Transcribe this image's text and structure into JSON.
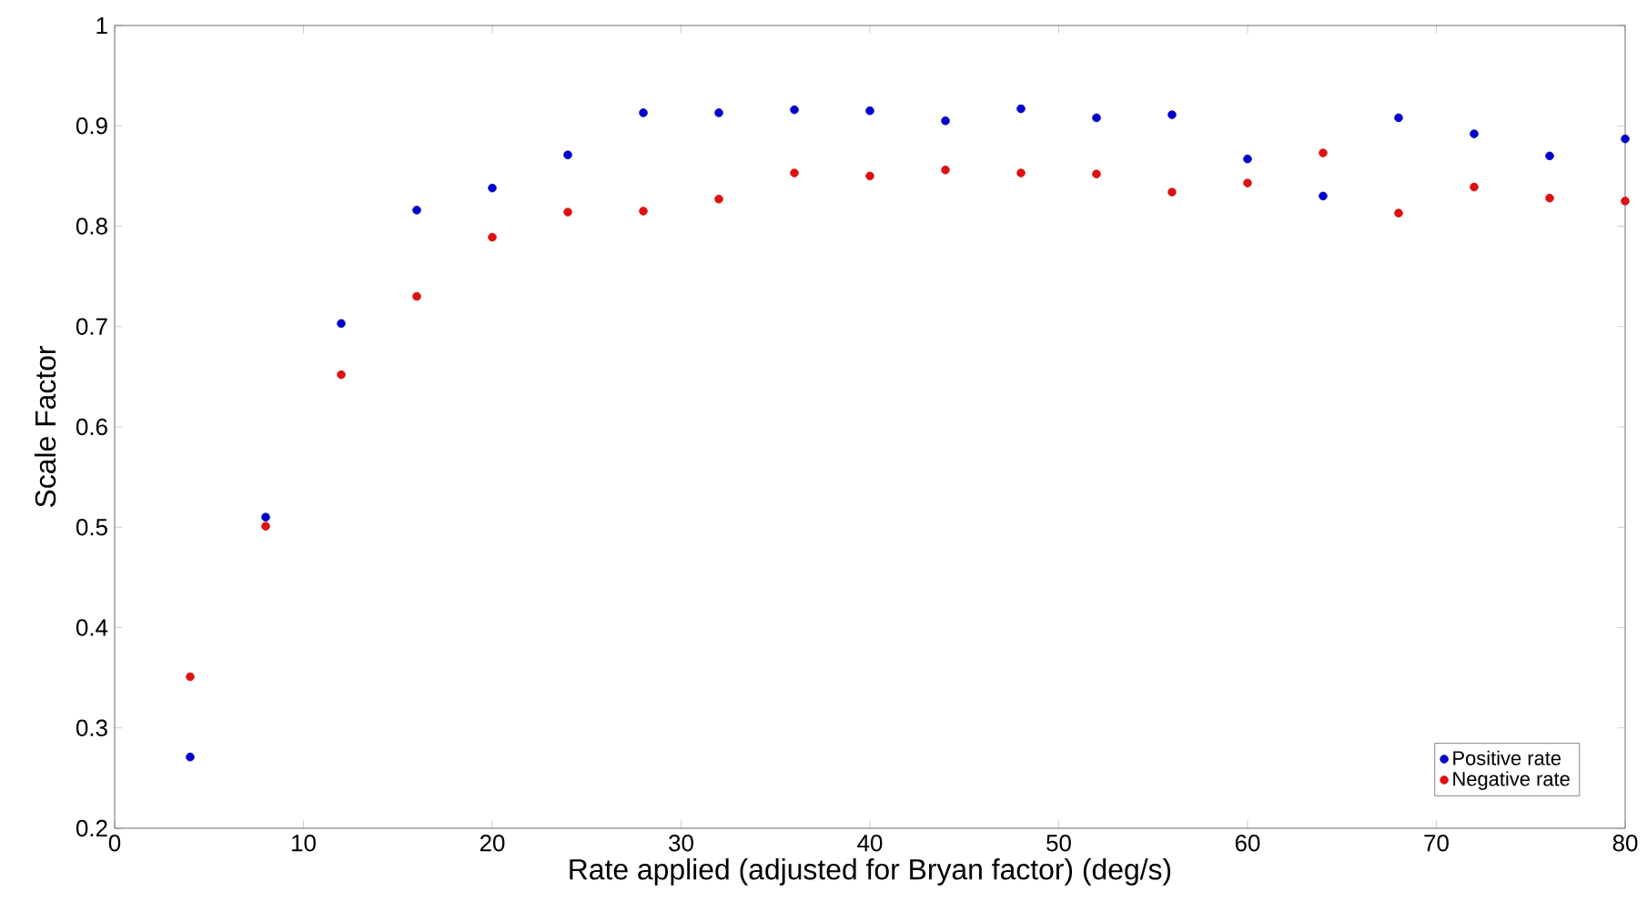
{
  "chart_data": {
    "type": "scatter",
    "xlabel": "Rate applied (adjusted for Bryan factor) (deg/s)",
    "ylabel": "Scale Factor",
    "x": [
      4,
      8,
      12,
      16,
      20,
      24,
      28,
      32,
      36,
      40,
      44,
      48,
      52,
      56,
      60,
      64,
      68,
      72,
      76,
      80
    ],
    "series": [
      {
        "name": "Positive rate",
        "color": "#0000cc",
        "values": [
          0.271,
          0.51,
          0.703,
          0.816,
          0.838,
          0.871,
          0.913,
          0.913,
          0.916,
          0.915,
          0.905,
          0.917,
          0.908,
          0.911,
          0.867,
          0.83,
          0.908,
          0.892,
          0.87,
          0.887
        ]
      },
      {
        "name": "Negative rate",
        "color": "#dd1111",
        "values": [
          0.351,
          0.501,
          0.652,
          0.73,
          0.789,
          0.814,
          0.815,
          0.827,
          0.853,
          0.85,
          0.856,
          0.853,
          0.852,
          0.834,
          0.843,
          0.873,
          0.813,
          0.839,
          0.828,
          0.825
        ]
      }
    ],
    "xlim": [
      0,
      80
    ],
    "xticks": [
      0,
      10,
      20,
      30,
      40,
      50,
      60,
      70,
      80
    ],
    "ylim": [
      0.2,
      1
    ],
    "yticks": [
      0.2,
      0.3,
      0.4,
      0.5,
      0.6,
      0.7,
      0.8,
      0.9,
      1
    ],
    "grid": false,
    "legend": "bottom right",
    "marker": "circle"
  }
}
